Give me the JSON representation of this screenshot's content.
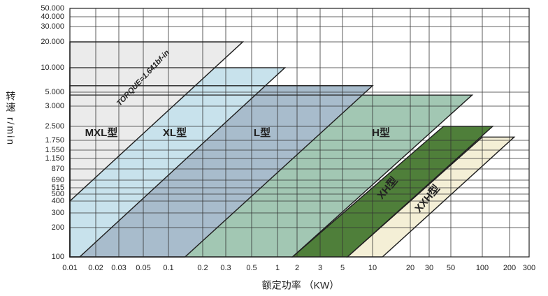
{
  "chart_data": {
    "type": "area",
    "x_label": "额定功率 （KW）",
    "y_label": "转速 r/min",
    "annotations": [
      "TORQUE=1.641bf-in"
    ],
    "log_x": true,
    "log_y": true,
    "grid": true,
    "xlim": [
      0.01,
      300
    ],
    "xticks": [
      0.01,
      0.02,
      0.03,
      0.05,
      0.1,
      0.2,
      0.3,
      0.5,
      1,
      2,
      3,
      5,
      10,
      20,
      30,
      50,
      100,
      200,
      300
    ],
    "ylim": [
      100,
      50000
    ],
    "yticks": [
      {
        "value": 50000,
        "label": "50.000"
      },
      {
        "value": 40000,
        "label": "40.000"
      },
      {
        "value": 30000,
        "label": "30.000"
      },
      {
        "value": 20000,
        "label": "20.000"
      },
      {
        "value": 10000,
        "label": "10.000"
      },
      {
        "value": 5000,
        "label": "5.000"
      },
      {
        "value": 3000,
        "label": "3.000"
      },
      {
        "value": 2500,
        "label": "2.500"
      },
      {
        "value": 1750,
        "label": "1.750"
      },
      {
        "value": 1550,
        "label": "1.550"
      },
      {
        "value": 1150,
        "label": "1.150"
      },
      870,
      690,
      515,
      500,
      400,
      300,
      200,
      100
    ],
    "series": [
      {
        "name": "MXL型",
        "color": "#ebebeb",
        "x": [
          0.01,
          0.01,
          0.42
        ],
        "values": [
          400,
          20000,
          20000
        ]
      },
      {
        "name": "XL型",
        "color": "#c8e2ec",
        "x": [
          0.01,
          0.01,
          1.3,
          0.013
        ],
        "values": [
          100,
          10000,
          10000,
          100
        ]
      },
      {
        "name": "L型",
        "color": "#a8bccc",
        "x": [
          0.01,
          0.01,
          10,
          0.14
        ],
        "values": [
          100,
          6000,
          6000,
          100
        ]
      },
      {
        "name": "H型",
        "color": "#a2c7b3",
        "x": [
          0.01,
          0.01,
          80,
          1.7
        ],
        "values": [
          100,
          4500,
          4500,
          100
        ]
      },
      {
        "name": "XH型",
        "color": "#4f7f3a",
        "x": [
          1.7,
          42,
          130,
          5.6
        ],
        "values": [
          100,
          2500,
          2500,
          100
        ]
      },
      {
        "name": "XXH型",
        "color": "#f4efd6",
        "x": [
          5.6,
          100,
          220,
          12
        ],
        "values": [
          100,
          1900,
          1900,
          100
        ]
      }
    ]
  }
}
